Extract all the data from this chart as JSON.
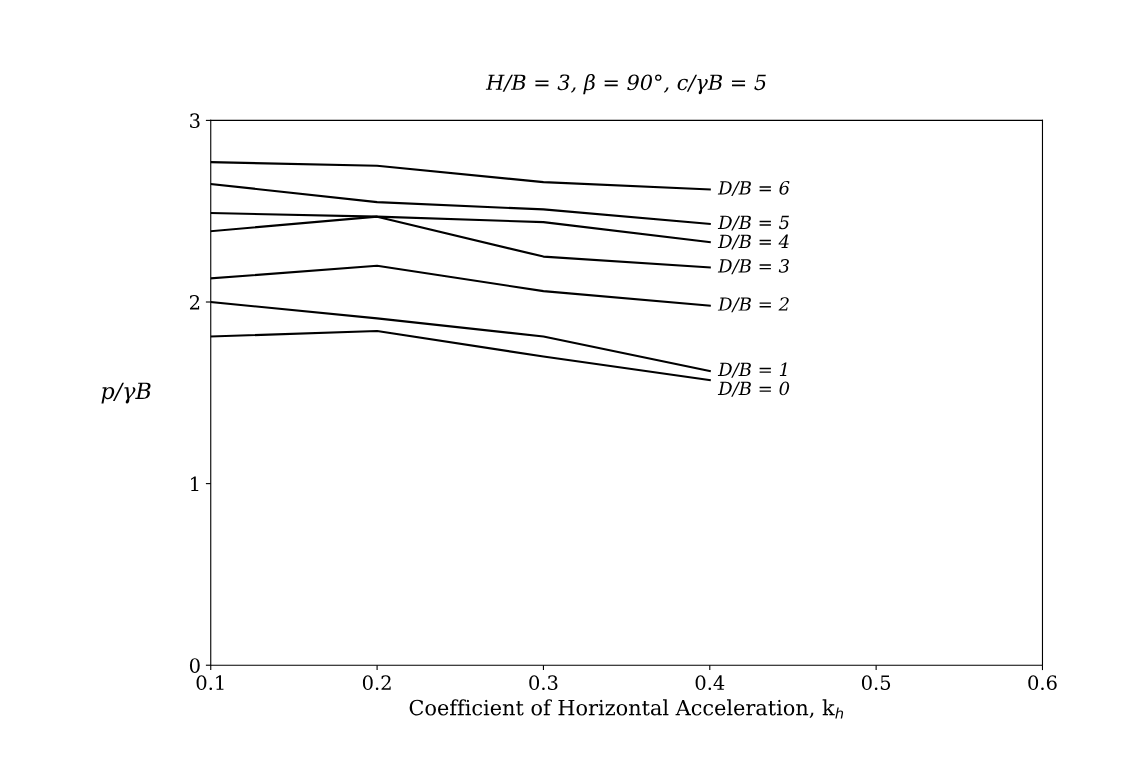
{
  "chart_data": {
    "type": "line",
    "title": "H/B = 3, β = 90°, c/γB = 5",
    "xlabel": "Coefficient of Horizontal Acceleration, k$_{h}$",
    "ylabel": "p/γB",
    "x": [
      0.1,
      0.2,
      0.3,
      0.4
    ],
    "series": [
      {
        "name": "D/B = 6",
        "color": "#000000",
        "values": [
          2.77,
          2.75,
          2.66,
          2.62
        ]
      },
      {
        "name": "D/B = 5",
        "color": "#000000",
        "values": [
          2.65,
          2.55,
          2.51,
          2.43
        ]
      },
      {
        "name": "D/B = 4",
        "color": "#000000",
        "values": [
          2.49,
          2.47,
          2.44,
          2.33
        ]
      },
      {
        "name": "D/B = 3",
        "color": "#000000",
        "values": [
          2.39,
          2.47,
          2.25,
          2.19
        ]
      },
      {
        "name": "D/B = 2",
        "color": "#000000",
        "values": [
          2.13,
          2.2,
          2.06,
          1.98
        ]
      },
      {
        "name": "D/B = 1",
        "color": "#000000",
        "values": [
          2.0,
          1.91,
          1.81,
          1.62
        ]
      },
      {
        "name": "D/B = 0",
        "color": "#000000",
        "values": [
          1.81,
          1.84,
          1.7,
          1.57
        ]
      }
    ],
    "xlim": [
      0.1,
      0.6
    ],
    "ylim": [
      0,
      3
    ],
    "xticks": [
      0.1,
      0.2,
      0.3,
      0.4,
      0.5,
      0.6
    ],
    "yticks": [
      0,
      1,
      2,
      3
    ],
    "grid": false,
    "legend": false,
    "marker": "none",
    "line_style": "solid"
  }
}
